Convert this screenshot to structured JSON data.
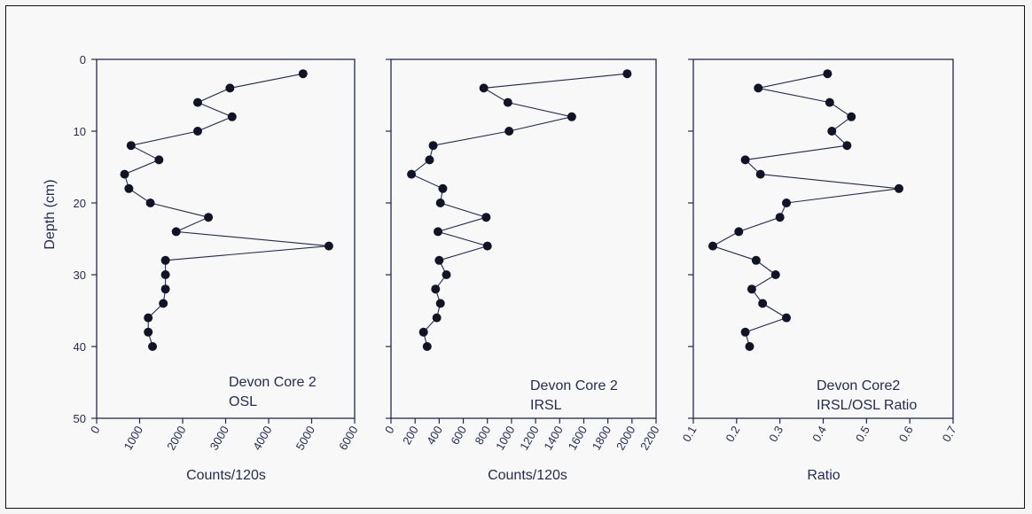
{
  "chart_data": [
    {
      "type": "line",
      "ylabel": "Depth (cm)",
      "xlabel": "Counts/120s",
      "xlim": [
        0,
        6000
      ],
      "ylim": [
        0,
        50
      ],
      "y_inverted": true,
      "xticks": [
        0,
        1000,
        2000,
        3000,
        4000,
        5000,
        6000
      ],
      "yticks": [
        0,
        10,
        20,
        30,
        40,
        50
      ],
      "annotation": [
        "Devon Core 2",
        "OSL"
      ],
      "series": [
        {
          "x": [
            4800,
            3100,
            2350,
            3150,
            2350,
            800,
            1450,
            650,
            750,
            1250,
            2600,
            1850,
            5400,
            1600,
            1600,
            1600,
            1550,
            1200,
            1200,
            1300
          ],
          "y": [
            2,
            4,
            6,
            8,
            10,
            12,
            14,
            16,
            18,
            20,
            22,
            24,
            26,
            28,
            30,
            32,
            34,
            36,
            38,
            40
          ]
        }
      ]
    },
    {
      "type": "line",
      "xlabel": "Counts/120s",
      "xlim": [
        0,
        2200
      ],
      "ylim": [
        0,
        50
      ],
      "y_inverted": true,
      "xticks": [
        0,
        200,
        400,
        600,
        800,
        1000,
        1200,
        1400,
        1600,
        1800,
        2000,
        2200
      ],
      "yticks": [
        0,
        10,
        20,
        30,
        40,
        50
      ],
      "annotation": [
        "Devon Core 2",
        "IRSL"
      ],
      "series": [
        {
          "x": [
            1960,
            770,
            970,
            1500,
            980,
            350,
            320,
            170,
            430,
            410,
            790,
            390,
            800,
            400,
            460,
            370,
            410,
            380,
            270,
            300
          ],
          "y": [
            2,
            4,
            6,
            8,
            10,
            12,
            14,
            16,
            18,
            20,
            22,
            24,
            26,
            28,
            30,
            32,
            34,
            36,
            38,
            40
          ]
        }
      ]
    },
    {
      "type": "line",
      "xlabel": "Ratio",
      "xlim": [
        0.1,
        0.7
      ],
      "ylim": [
        0,
        50
      ],
      "y_inverted": true,
      "xticks": [
        0.1,
        0.2,
        0.3,
        0.4,
        0.5,
        0.6,
        0.7
      ],
      "yticks": [
        0,
        10,
        20,
        30,
        40,
        50
      ],
      "annotation": [
        "Devon Core2",
        "IRSL/OSL Ratio"
      ],
      "series": [
        {
          "x": [
            0.41,
            0.25,
            0.415,
            0.465,
            0.42,
            0.455,
            0.22,
            0.255,
            0.575,
            0.315,
            0.3,
            0.205,
            0.145,
            0.245,
            0.29,
            0.235,
            0.26,
            0.315,
            0.22,
            0.23
          ],
          "y": [
            2,
            4,
            6,
            8,
            10,
            12,
            14,
            16,
            18,
            20,
            22,
            24,
            26,
            28,
            30,
            32,
            34,
            36,
            38,
            40
          ]
        }
      ]
    }
  ]
}
